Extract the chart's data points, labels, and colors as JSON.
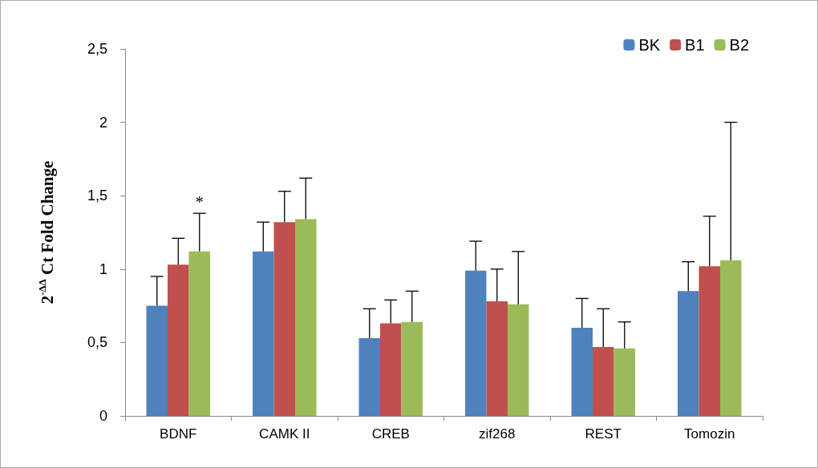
{
  "chart_data": {
    "type": "bar",
    "ylabel": "2$^{-ΔΔ}$ Ct Fold Change",
    "categories": [
      "BDNF",
      "CAMK II",
      "CREB",
      "zif268",
      "REST",
      "Tomozin"
    ],
    "series": [
      {
        "name": "BK",
        "color": "#4f81bd",
        "values": [
          0.75,
          1.12,
          0.53,
          0.99,
          0.6,
          0.85
        ],
        "errors": [
          [
            0.75,
            0.95
          ],
          [
            1.12,
            1.32
          ],
          [
            0.53,
            0.73
          ],
          [
            0.99,
            1.19
          ],
          [
            0.6,
            0.8
          ],
          [
            0.85,
            1.05
          ]
        ]
      },
      {
        "name": "B1",
        "color": "#c0504d",
        "values": [
          1.03,
          1.32,
          0.63,
          0.78,
          0.47,
          1.02
        ],
        "errors": [
          [
            1.03,
            1.21
          ],
          [
            1.32,
            1.53
          ],
          [
            0.63,
            0.79
          ],
          [
            0.78,
            1.0
          ],
          [
            0.47,
            0.73
          ],
          [
            1.02,
            1.36
          ]
        ]
      },
      {
        "name": "B2",
        "color": "#9bbb59",
        "values": [
          1.12,
          1.34,
          0.64,
          0.76,
          0.46,
          1.06
        ],
        "errors": [
          [
            1.12,
            1.38
          ],
          [
            1.34,
            1.62
          ],
          [
            0.64,
            0.85
          ],
          [
            0.76,
            1.12
          ],
          [
            0.46,
            0.64
          ],
          [
            1.06,
            2.0
          ]
        ]
      }
    ],
    "ylim": [
      0,
      2.5
    ],
    "yticks": [
      0,
      {
        "value": 0.5,
        "label": "0,5"
      },
      1,
      {
        "value": 1.5,
        "label": "1,5"
      },
      2,
      {
        "value": 2.5,
        "label": "2,5"
      }
    ],
    "grid": false,
    "legend": "top right",
    "annotations": [
      {
        "text": "*",
        "x": "BDNF",
        "y": 1.12
      }
    ]
  }
}
